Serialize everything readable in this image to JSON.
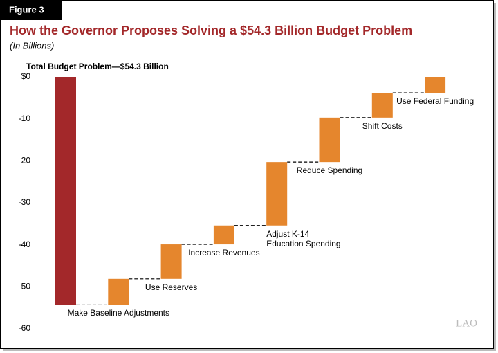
{
  "figure_label": "Figure 3",
  "logo": "LAO",
  "chart_data": {
    "type": "waterfall",
    "title": "How the Governor Proposes Solving a $54.3 Billion Budget Problem",
    "subtitle": "(In Billions)",
    "categories": [
      "Total Budget Problem—$54.3 Billion",
      "Make Baseline Adjustments",
      "Use Reserves",
      "Increase Revenues",
      "Adjust K-14 Education Spending",
      "Reduce Spending",
      "Shift Costs",
      "Use Federal Funding"
    ],
    "values": [
      -54.3,
      6.2,
      8.2,
      4.5,
      15.1,
      10.6,
      5.9,
      3.8
    ],
    "total_color": "#a3282a",
    "color": "#e5862d",
    "ylim": [
      -60,
      0
    ],
    "yticks": [
      {
        "value": 0,
        "label": "$0"
      },
      -10,
      -20,
      -30,
      -40,
      -50,
      -60
    ],
    "grid": false
  }
}
